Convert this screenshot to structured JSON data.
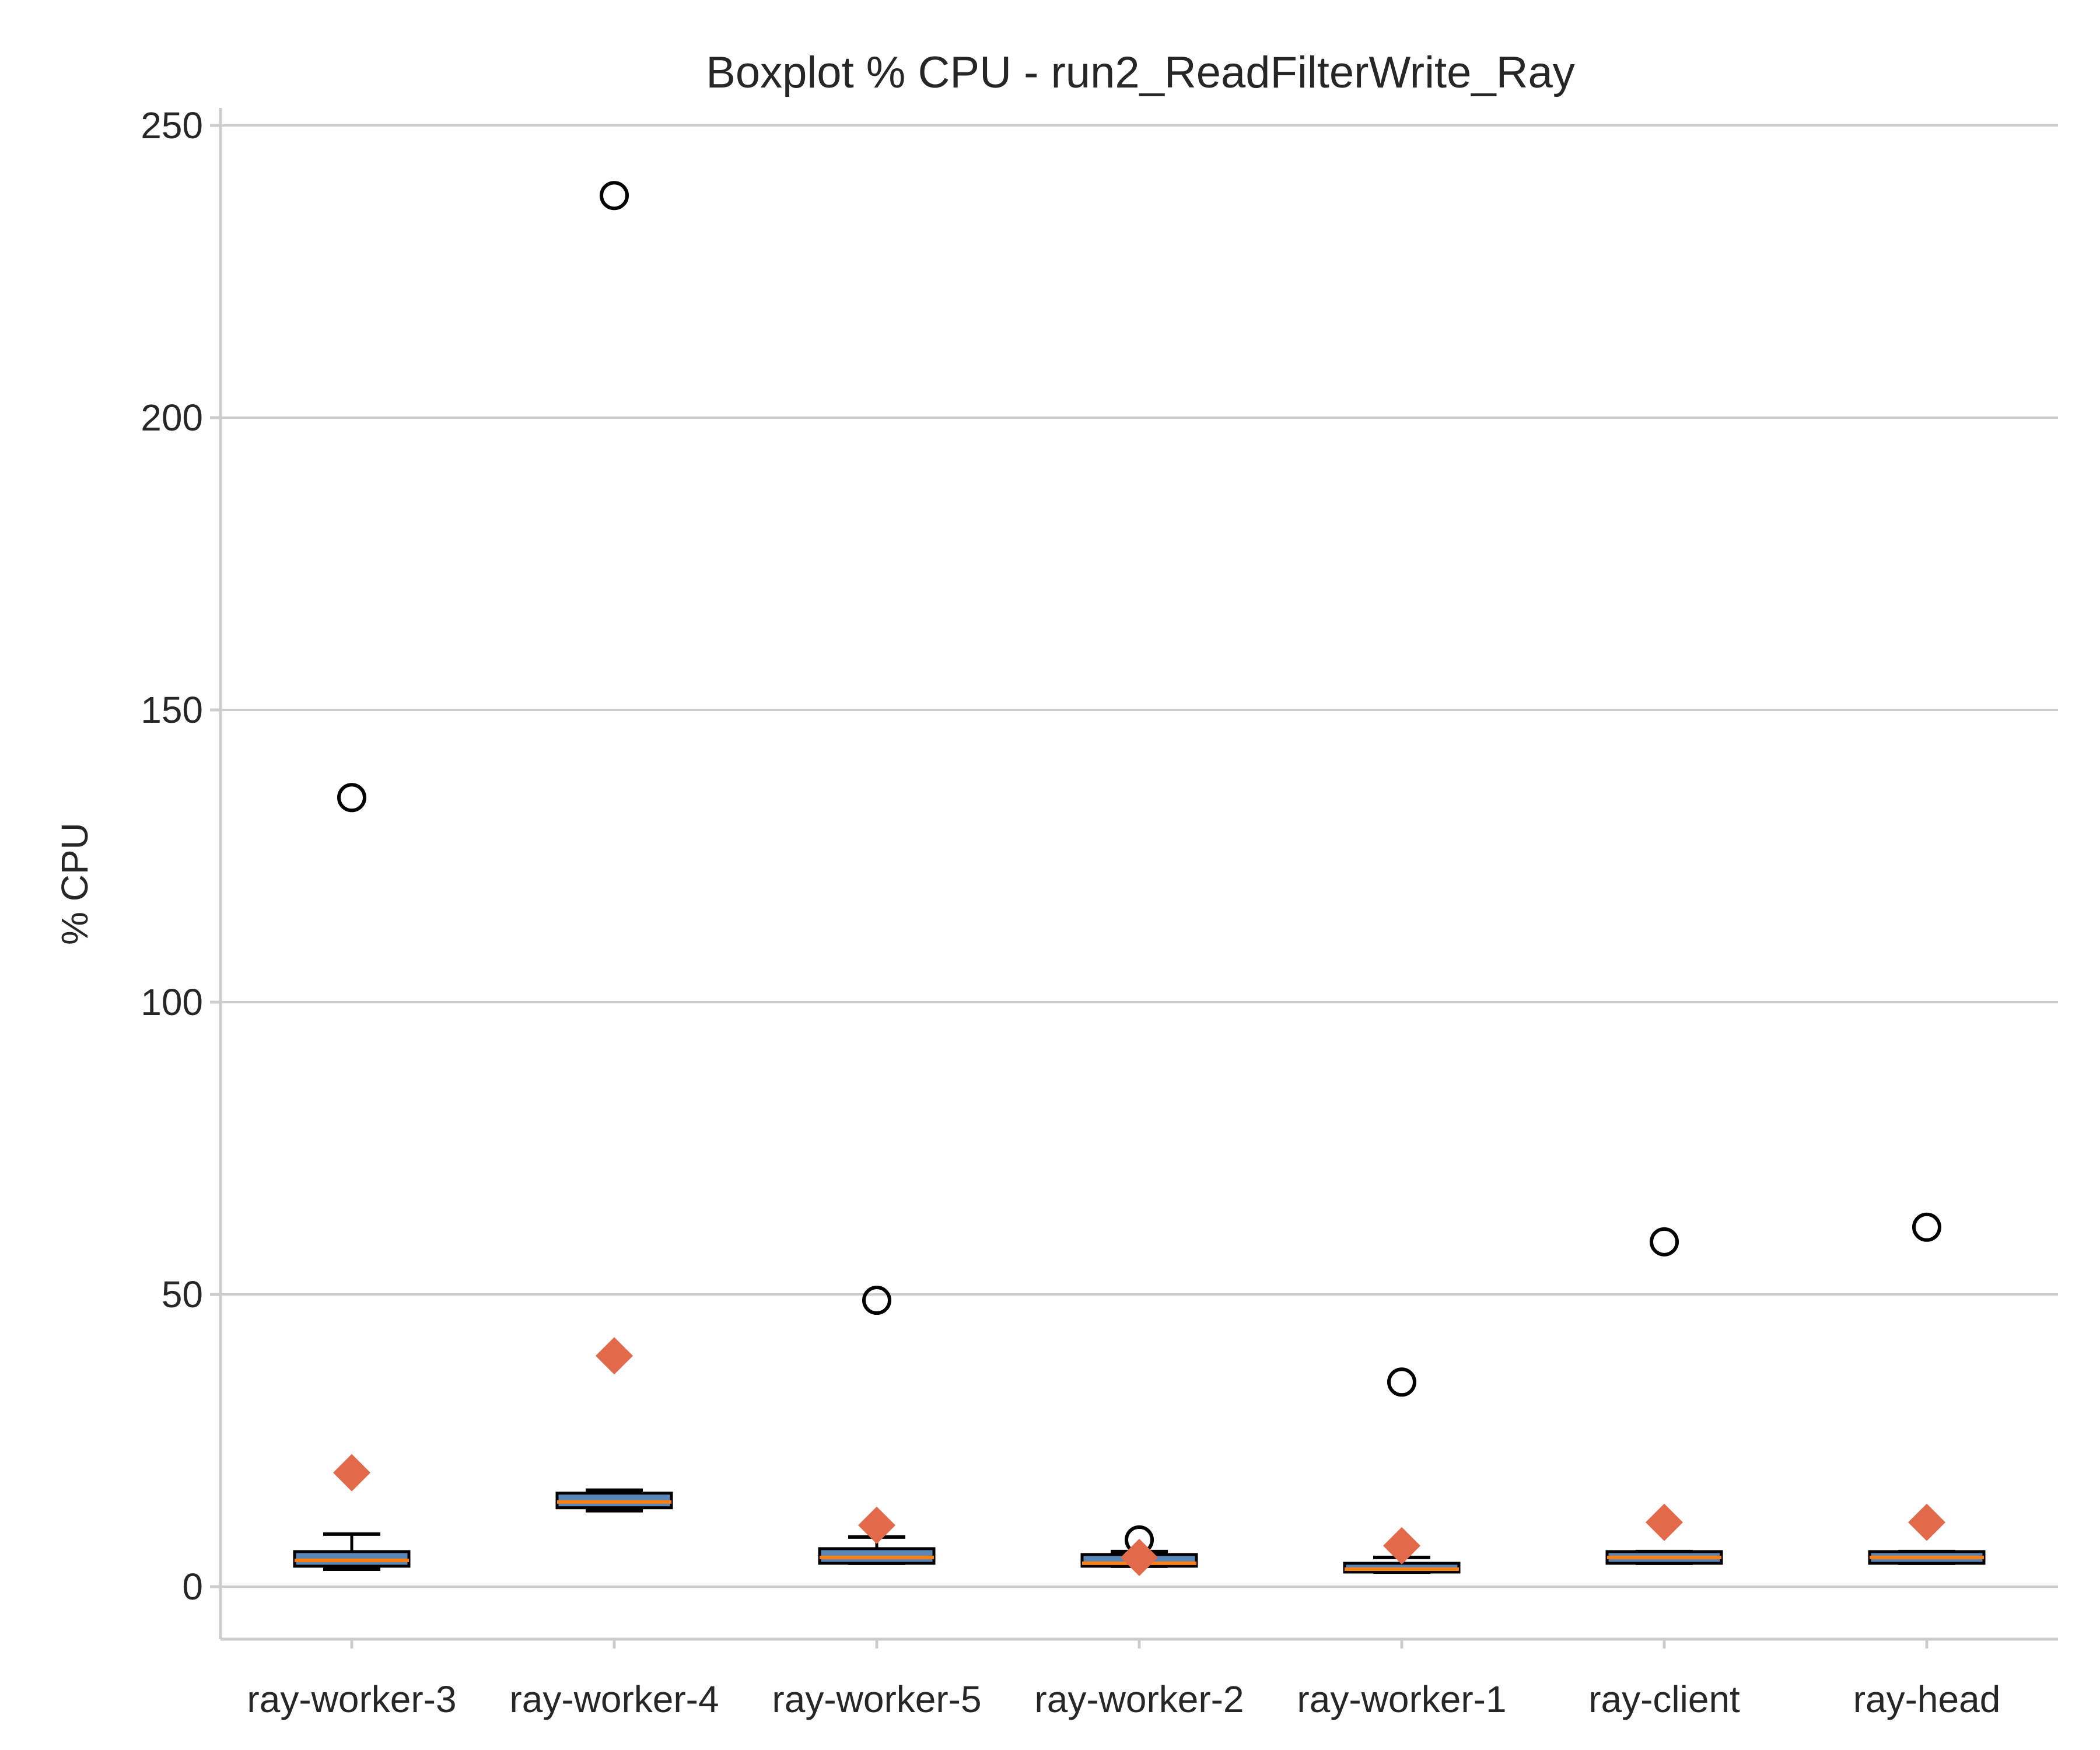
{
  "chart_data": {
    "type": "box",
    "title": "Boxplot % CPU - run2_ReadFilterWrite_Ray",
    "xlabel": "",
    "ylabel": "% CPU",
    "ylim": [
      -9,
      250
    ],
    "yticks": [
      0,
      50,
      100,
      150,
      200,
      250
    ],
    "grid": "horizontal",
    "colors": {
      "box_fill": "#5b86b8",
      "median": "#ff7f0e",
      "mean_marker": "#e2694a",
      "outline": "#000000",
      "grid": "#cccccc",
      "text": "#262626"
    },
    "categories": [
      "ray-worker-3",
      "ray-worker-4",
      "ray-worker-5",
      "ray-worker-2",
      "ray-worker-1",
      "ray-client",
      "ray-head"
    ],
    "boxes": [
      {
        "whisker_low": 3,
        "q1": 3.5,
        "median": 4.5,
        "q3": 6,
        "whisker_high": 9,
        "mean": 19.5,
        "outliers": [
          135
        ]
      },
      {
        "whisker_low": 13,
        "q1": 13.5,
        "median": 14.5,
        "q3": 16,
        "whisker_high": 16.5,
        "mean": 39.5,
        "outliers": [
          238
        ]
      },
      {
        "whisker_low": 4,
        "q1": 4,
        "median": 5,
        "q3": 6.5,
        "whisker_high": 8.5,
        "mean": 10.5,
        "outliers": [
          49
        ]
      },
      {
        "whisker_low": 3.5,
        "q1": 3.5,
        "median": 4,
        "q3": 5.5,
        "whisker_high": 6,
        "mean": 5,
        "outliers": [
          8
        ]
      },
      {
        "whisker_low": 2.5,
        "q1": 2.5,
        "median": 3,
        "q3": 4,
        "whisker_high": 5,
        "mean": 7,
        "outliers": [
          35
        ]
      },
      {
        "whisker_low": 4,
        "q1": 4,
        "median": 5,
        "q3": 6,
        "whisker_high": 6,
        "mean": 11,
        "outliers": [
          59
        ]
      },
      {
        "whisker_low": 4,
        "q1": 4,
        "median": 5,
        "q3": 6,
        "whisker_high": 6,
        "mean": 11,
        "outliers": [
          61.5
        ]
      }
    ]
  }
}
